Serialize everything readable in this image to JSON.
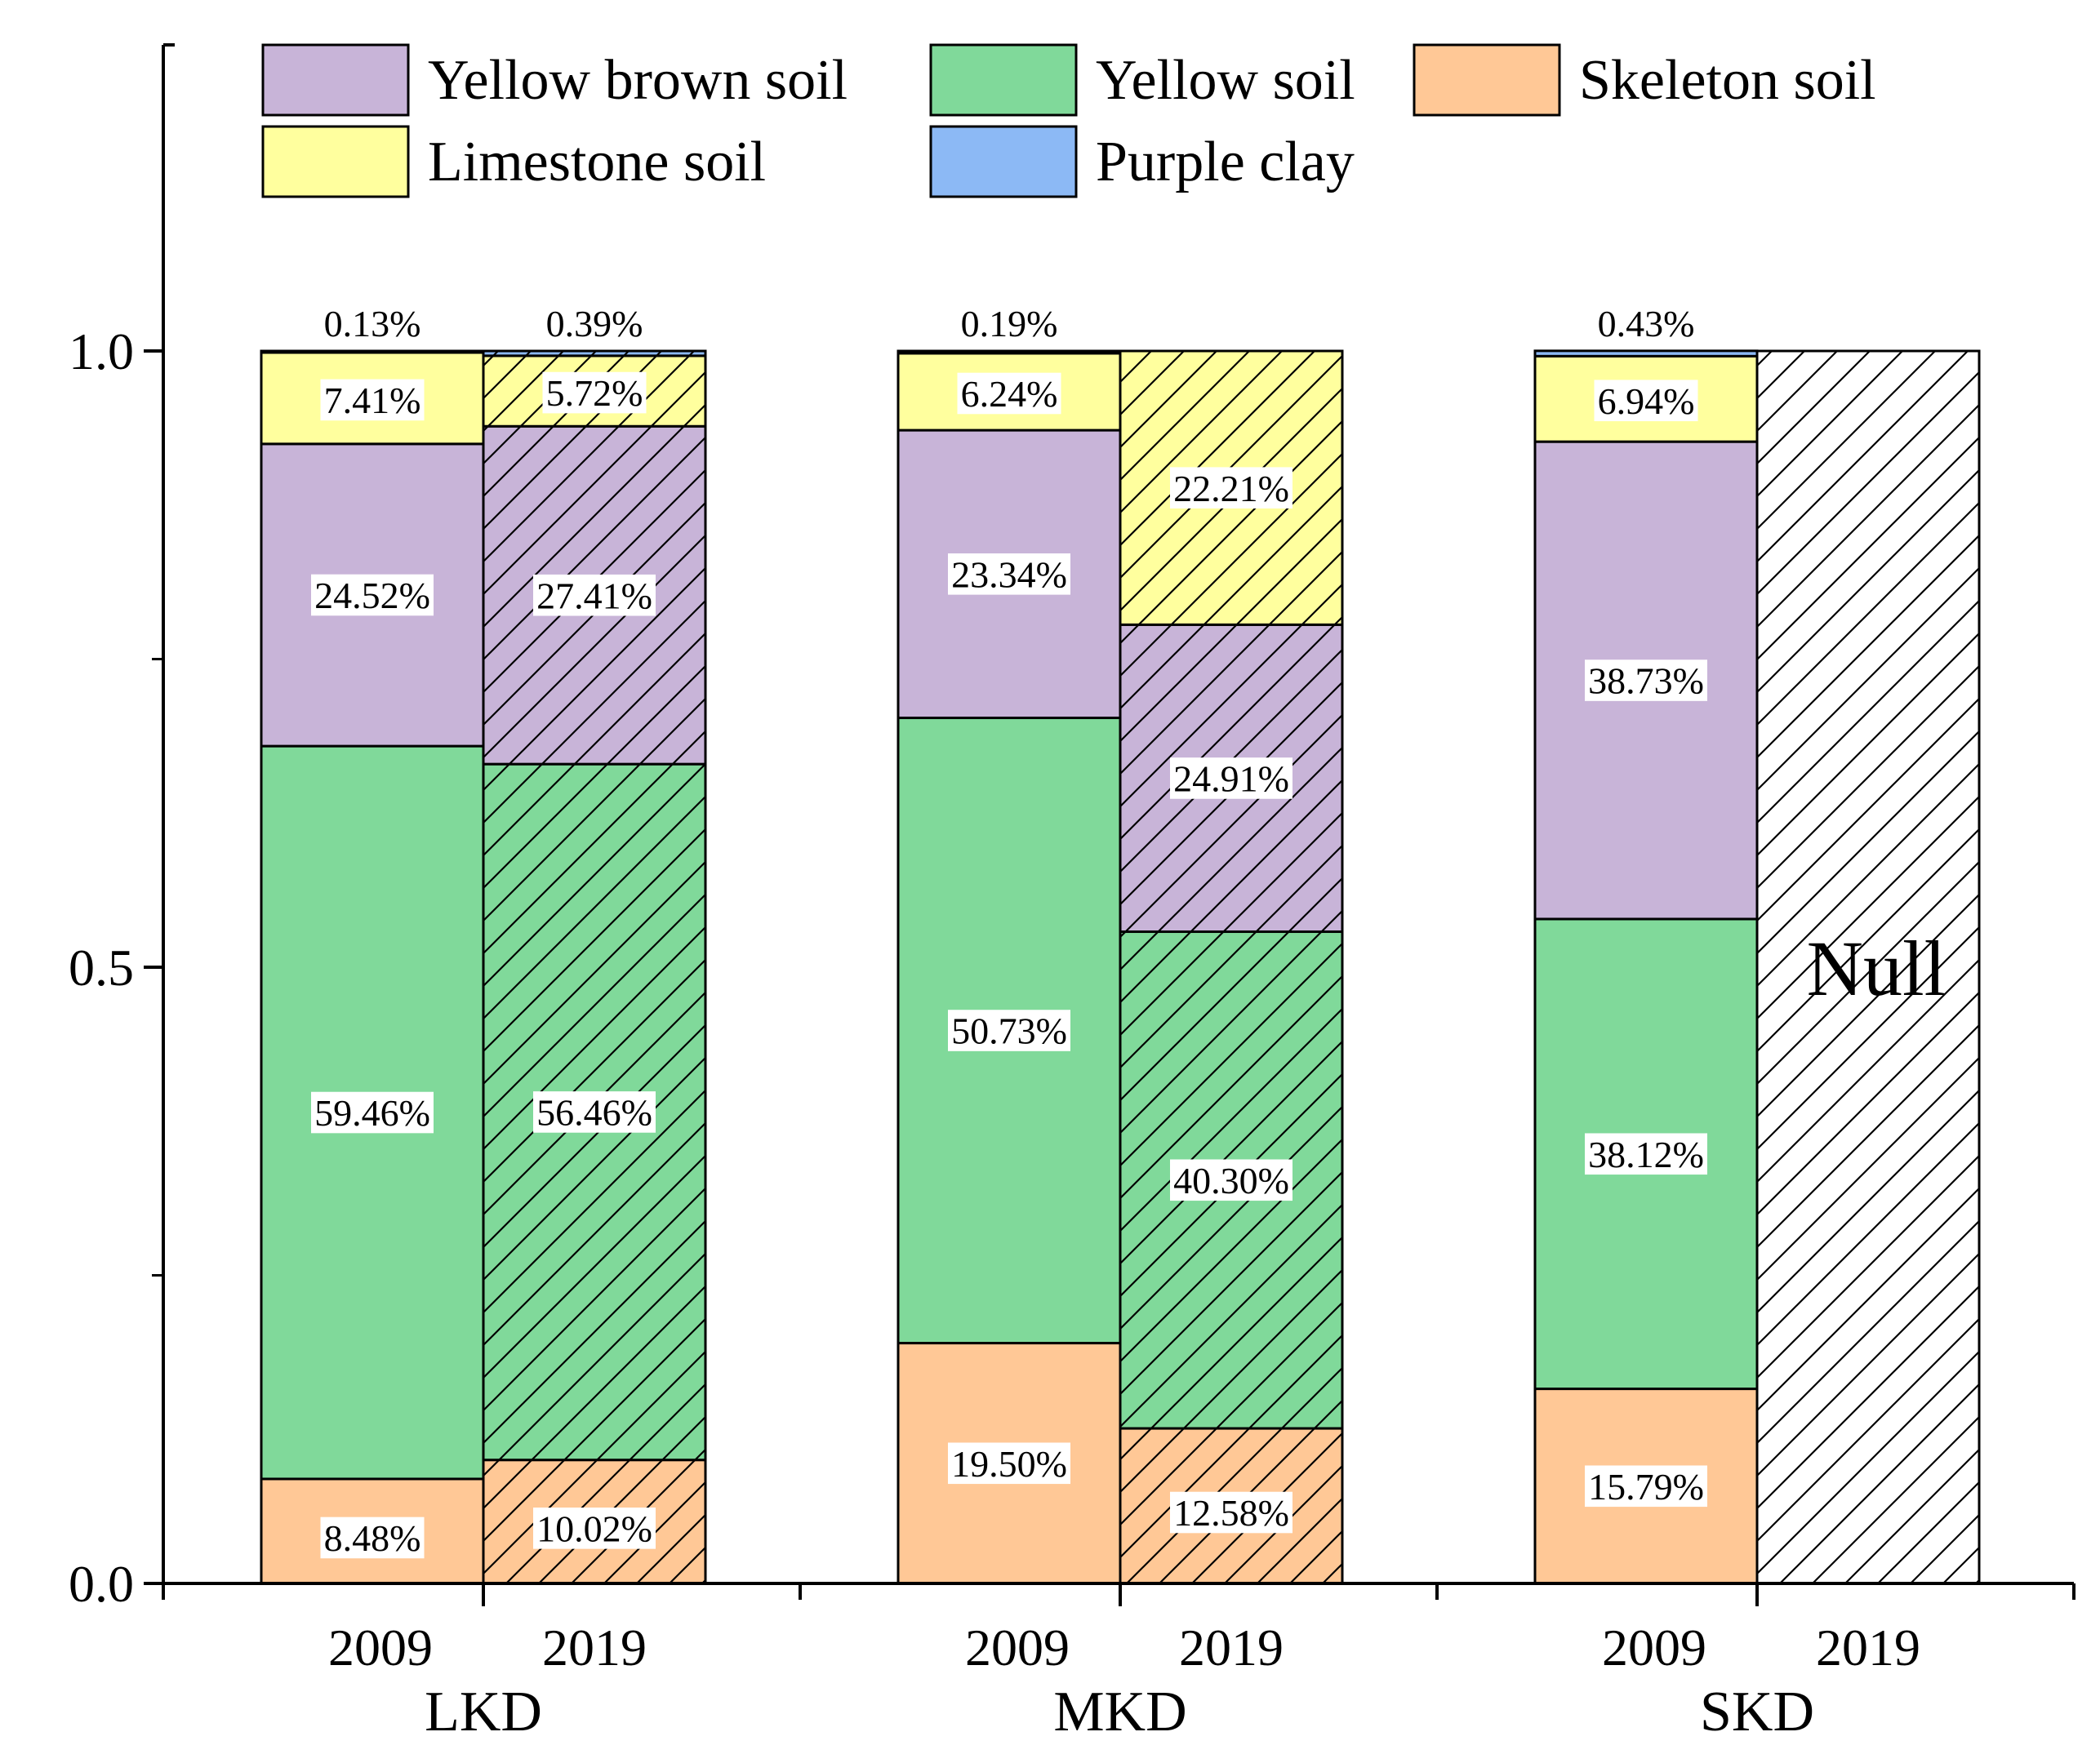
{
  "chart_data": {
    "type": "bar",
    "stacked": true,
    "title": "",
    "xlabel": "",
    "ylabel": "",
    "ylim": [
      0,
      1.25
    ],
    "yticks": [
      0.0,
      0.5,
      1.0
    ],
    "ytick_labels": [
      "0.0",
      "0.5",
      "1.0"
    ],
    "series": [
      {
        "key": "skeleton",
        "name": "Skeleton soil",
        "color": "#FFC896"
      },
      {
        "key": "yellow",
        "name": "Yellow soil",
        "color": "#80D99A"
      },
      {
        "key": "yellow_brown",
        "name": "Yellow brown soil",
        "color": "#C8B4D8"
      },
      {
        "key": "limestone",
        "name": "Limestone  soil",
        "color": "#FFFF9E"
      },
      {
        "key": "purple",
        "name": "Purple clay",
        "color": "#8CB9F5"
      }
    ],
    "legend_order": [
      "yellow_brown",
      "yellow",
      "skeleton",
      "limestone",
      "purple"
    ],
    "groups": [
      {
        "name": "LKD",
        "bars": [
          {
            "year": "2009",
            "hatched": false,
            "null": false,
            "values": {
              "skeleton": 0.0848,
              "yellow": 0.5946,
              "yellow_brown": 0.2452,
              "limestone": 0.0741,
              "purple": 0.0013
            },
            "labels": {
              "skeleton": "8.48%",
              "yellow": "59.46%",
              "yellow_brown": "24.52%",
              "limestone": "7.41%",
              "purple": "0.13%"
            }
          },
          {
            "year": "2019",
            "hatched": true,
            "null": false,
            "values": {
              "skeleton": 0.1002,
              "yellow": 0.5646,
              "yellow_brown": 0.2741,
              "limestone": 0.0572,
              "purple": 0.0039
            },
            "labels": {
              "skeleton": "10.02%",
              "yellow": "56.46%",
              "yellow_brown": "27.41%",
              "limestone": "5.72%",
              "purple": "0.39%"
            }
          }
        ]
      },
      {
        "name": "MKD",
        "bars": [
          {
            "year": "2009",
            "hatched": false,
            "null": false,
            "values": {
              "skeleton": 0.195,
              "yellow": 0.5073,
              "yellow_brown": 0.2334,
              "limestone": 0.0624,
              "purple": 0.0019
            },
            "labels": {
              "skeleton": "19.50%",
              "yellow": "50.73%",
              "yellow_brown": "23.34%",
              "limestone": "6.24%",
              "purple": "0.19%"
            }
          },
          {
            "year": "2019",
            "hatched": true,
            "null": false,
            "values": {
              "skeleton": 0.1258,
              "yellow": 0.403,
              "yellow_brown": 0.2491,
              "limestone": 0.2221,
              "purple": 0.0
            },
            "labels": {
              "skeleton": "12.58%",
              "yellow": "40.30%",
              "yellow_brown": "24.91%",
              "limestone": "22.21%"
            }
          }
        ]
      },
      {
        "name": "SKD",
        "bars": [
          {
            "year": "2009",
            "hatched": false,
            "null": false,
            "values": {
              "skeleton": 0.1579,
              "yellow": 0.3812,
              "yellow_brown": 0.3873,
              "limestone": 0.0694,
              "purple": 0.0043
            },
            "labels": {
              "skeleton": "15.79%",
              "yellow": "38.12%",
              "yellow_brown": "38.73%",
              "limestone": "6.94%",
              "purple": "0.43%"
            }
          },
          {
            "year": "2019",
            "hatched": true,
            "null": true,
            "null_label": "Null",
            "values": {},
            "labels": {}
          }
        ]
      }
    ]
  }
}
